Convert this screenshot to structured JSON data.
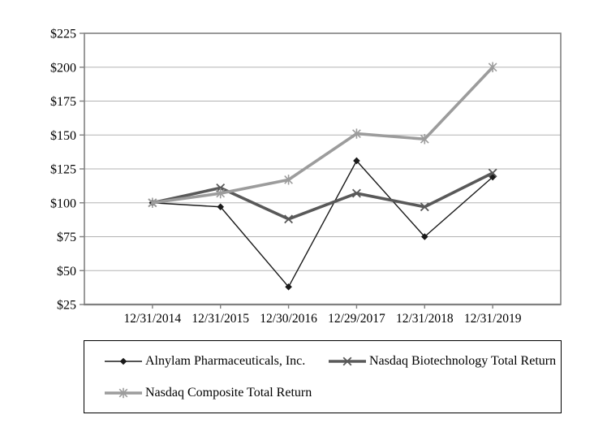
{
  "chart_data": {
    "type": "line",
    "title": "",
    "x_categories": [
      "12/31/2014",
      "12/31/2015",
      "12/30/2016",
      "12/29/2017",
      "12/31/2018",
      "12/31/2019"
    ],
    "y_ticks": [
      "$25",
      "$50",
      "$75",
      "$100",
      "$125",
      "$150",
      "$175",
      "$200",
      "$225"
    ],
    "y_min": 25,
    "y_max": 225,
    "y_step": 25,
    "grid": true,
    "legend_position": "bottom",
    "series": [
      {
        "name": "Alnylam Pharmaceuticals, Inc.",
        "marker": "diamond",
        "color": "#1a1a1a",
        "width": 1.4,
        "values": [
          100,
          97,
          38,
          131,
          75,
          119
        ]
      },
      {
        "name": "Nasdaq Biotechnology Total Return",
        "marker": "x",
        "color": "#595959",
        "width": 3.6,
        "values": [
          100,
          111,
          88,
          107,
          97,
          122
        ]
      },
      {
        "name": "Nasdaq Composite Total Return",
        "marker": "asterisk",
        "color": "#9c9c9c",
        "width": 3.6,
        "values": [
          100,
          107,
          117,
          151,
          147,
          200
        ]
      }
    ],
    "colors": {
      "gridline": "#b3b3b3",
      "axis": "#808080",
      "text": "#000000",
      "legend_border": "#000000",
      "background": "#ffffff"
    }
  }
}
